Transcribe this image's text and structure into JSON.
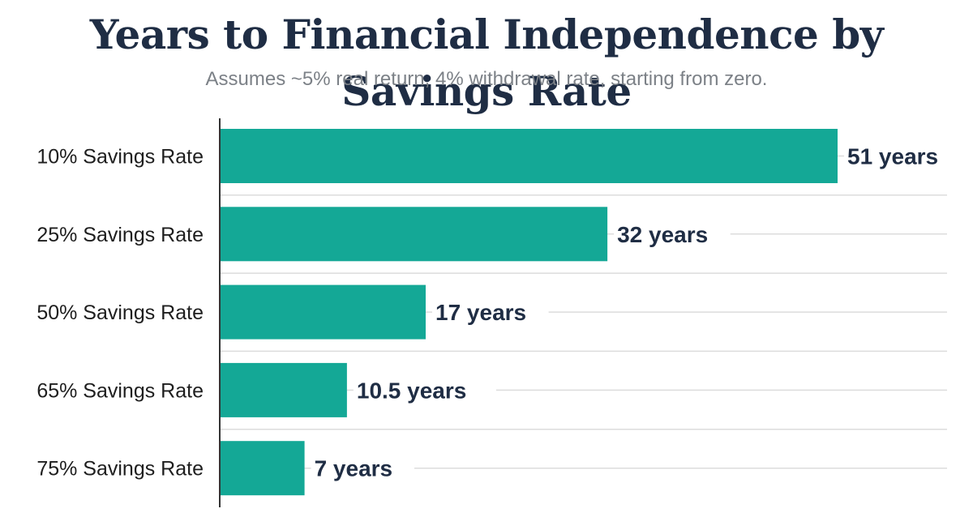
{
  "chart_data": {
    "type": "bar",
    "orientation": "horizontal",
    "title": "Years to Financial Independence by Savings Rate",
    "subtitle": "Assumes ~5% real return, 4% withdrawal rate, starting from zero.",
    "categories": [
      "10% Savings Rate",
      "25% Savings Rate",
      "50% Savings Rate",
      "65% Savings Rate",
      "75% Savings Rate"
    ],
    "values": [
      51,
      32,
      17,
      10.5,
      7
    ],
    "value_labels": [
      "51 years",
      "32 years",
      "17 years",
      "10.5 years",
      "7 years"
    ],
    "xlim": [
      0,
      51
    ],
    "grid": true,
    "colors": {
      "bar": "#14a896",
      "text_dark": "#1f2d44",
      "grid": "#dcdcdc",
      "axis": "#333333"
    }
  }
}
